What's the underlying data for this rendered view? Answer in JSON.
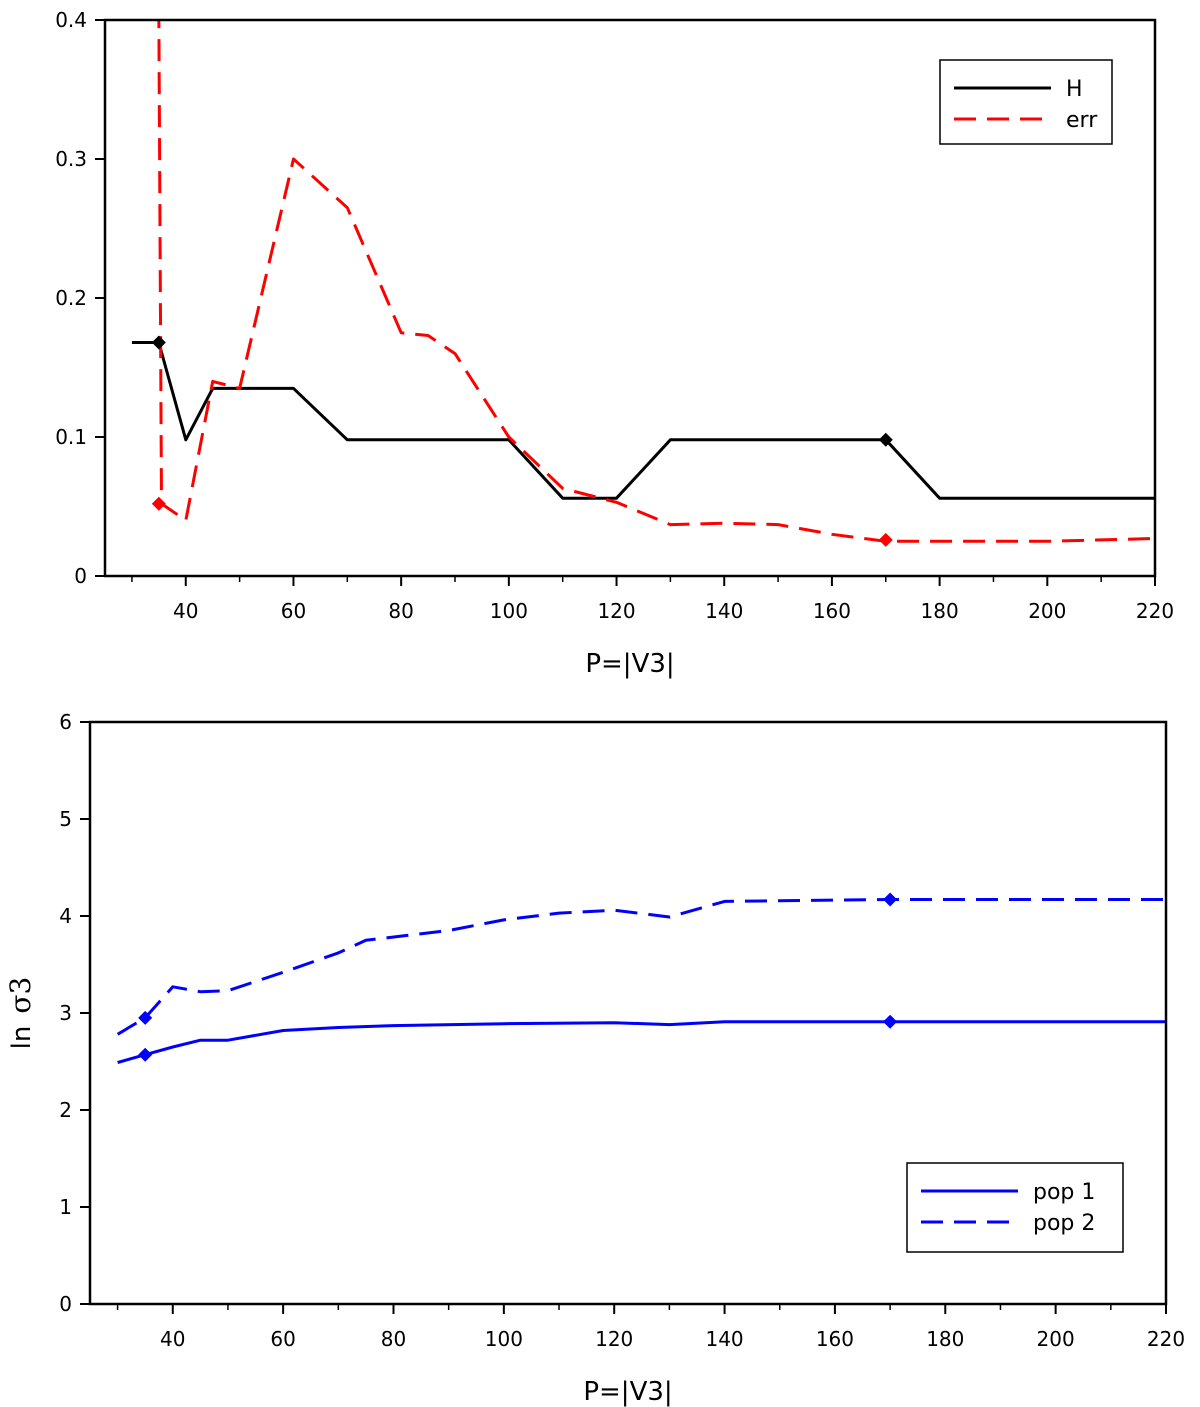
{
  "chart_data": [
    {
      "type": "line",
      "title": "",
      "xlabel": "P=|V3|",
      "ylabel": "",
      "xlim": [
        25,
        220
      ],
      "ylim": [
        0,
        0.4
      ],
      "xticks": [
        40,
        60,
        80,
        100,
        120,
        140,
        160,
        180,
        200,
        220
      ],
      "xticks_minor": [
        30,
        50,
        70,
        90,
        110,
        130,
        150,
        170,
        190,
        210
      ],
      "yticks": [
        0,
        0.1,
        0.2,
        0.3,
        0.4
      ],
      "ytick_labels": [
        "0",
        "0.1",
        "0.2",
        "0.3",
        "0.4"
      ],
      "legend_position": "top-right",
      "series": [
        {
          "name": "H",
          "color": "#000000",
          "style": "solid",
          "points": [
            [
              30,
              0.168
            ],
            [
              35,
              0.168
            ],
            [
              40,
              0.098
            ],
            [
              45,
              0.135
            ],
            [
              60,
              0.135
            ],
            [
              70,
              0.098
            ],
            [
              100,
              0.098
            ],
            [
              110,
              0.056
            ],
            [
              120,
              0.056
            ],
            [
              130,
              0.098
            ],
            [
              170,
              0.098
            ],
            [
              180,
              0.056
            ],
            [
              220,
              0.056
            ]
          ],
          "markers": [
            [
              35,
              0.168
            ],
            [
              170,
              0.098
            ]
          ]
        },
        {
          "name": "err",
          "color": "#ff0000",
          "style": "dashed",
          "points": [
            [
              35,
              0.41
            ],
            [
              35.5,
              0.052
            ],
            [
              40,
              0.04
            ],
            [
              45,
              0.14
            ],
            [
              50,
              0.135
            ],
            [
              60,
              0.3
            ],
            [
              70,
              0.265
            ],
            [
              80,
              0.175
            ],
            [
              85,
              0.173
            ],
            [
              90,
              0.16
            ],
            [
              100,
              0.1
            ],
            [
              110,
              0.063
            ],
            [
              120,
              0.053
            ],
            [
              130,
              0.037
            ],
            [
              140,
              0.038
            ],
            [
              150,
              0.037
            ],
            [
              160,
              0.03
            ],
            [
              170,
              0.025
            ],
            [
              180,
              0.025
            ],
            [
              200,
              0.025
            ],
            [
              220,
              0.027
            ]
          ],
          "markers": [
            [
              35,
              0.052
            ],
            [
              170,
              0.026
            ]
          ]
        }
      ]
    },
    {
      "type": "line",
      "title": "",
      "xlabel": "P=|V3|",
      "ylabel_prefix": "ln",
      "ylabel_symbol": "σ3",
      "xlim": [
        25,
        220
      ],
      "ylim": [
        0,
        6
      ],
      "xticks": [
        40,
        60,
        80,
        100,
        120,
        140,
        160,
        180,
        200,
        220
      ],
      "xticks_minor": [
        30,
        50,
        70,
        90,
        110,
        130,
        150,
        170,
        190,
        210
      ],
      "yticks": [
        0,
        1,
        2,
        3,
        4,
        5,
        6
      ],
      "ytick_labels": [
        "0",
        "1",
        "2",
        "3",
        "4",
        "5",
        "6"
      ],
      "legend_position": "bottom-right",
      "series": [
        {
          "name": "pop 1",
          "color": "#0000ff",
          "style": "solid",
          "points": [
            [
              30,
              2.49
            ],
            [
              35,
              2.57
            ],
            [
              40,
              2.65
            ],
            [
              45,
              2.72
            ],
            [
              50,
              2.72
            ],
            [
              60,
              2.82
            ],
            [
              70,
              2.85
            ],
            [
              80,
              2.87
            ],
            [
              100,
              2.89
            ],
            [
              120,
              2.9
            ],
            [
              130,
              2.88
            ],
            [
              140,
              2.91
            ],
            [
              150,
              2.91
            ],
            [
              170,
              2.91
            ],
            [
              200,
              2.91
            ],
            [
              220,
              2.91
            ]
          ],
          "markers": [
            [
              35,
              2.57
            ],
            [
              170,
              2.91
            ]
          ]
        },
        {
          "name": "pop 2",
          "color": "#0000ff",
          "style": "dashed",
          "points": [
            [
              30,
              2.78
            ],
            [
              35,
              2.95
            ],
            [
              40,
              3.27
            ],
            [
              45,
              3.22
            ],
            [
              50,
              3.23
            ],
            [
              60,
              3.42
            ],
            [
              70,
              3.62
            ],
            [
              75,
              3.75
            ],
            [
              90,
              3.85
            ],
            [
              100,
              3.96
            ],
            [
              110,
              4.03
            ],
            [
              120,
              4.06
            ],
            [
              130,
              3.99
            ],
            [
              140,
              4.15
            ],
            [
              170,
              4.17
            ],
            [
              200,
              4.17
            ],
            [
              220,
              4.17
            ]
          ],
          "markers": [
            [
              35,
              2.95
            ],
            [
              170,
              4.17
            ]
          ]
        }
      ]
    }
  ]
}
